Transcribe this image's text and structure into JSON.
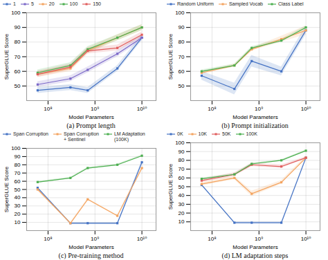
{
  "chart_data": [
    {
      "type": "line",
      "title": "(a) Prompt length",
      "xlabel": "Model Parameters",
      "ylabel": "SuperGLUE Score",
      "x": [
        60000000,
        300000000,
        700000000,
        3000000000,
        10000000000
      ],
      "series": [
        {
          "name": "1",
          "color": "#4472c4",
          "values": [
            47,
            49,
            47,
            62,
            83
          ],
          "band": [
            2,
            2,
            2,
            2,
            2
          ]
        },
        {
          "name": "5",
          "color": "#7b68c8",
          "values": [
            51,
            55,
            61,
            72,
            83
          ],
          "band": [
            2,
            2,
            2,
            2,
            2
          ]
        },
        {
          "name": "20",
          "color": "#f4a460",
          "values": [
            58,
            62,
            74,
            83,
            90
          ],
          "band": [
            2,
            2,
            2,
            2,
            2
          ]
        },
        {
          "name": "100",
          "color": "#4caf50",
          "values": [
            59,
            64,
            75,
            83,
            90
          ],
          "band": [
            2,
            2,
            2,
            2,
            2
          ]
        },
        {
          "name": "150",
          "color": "#e05c5c",
          "values": [
            58,
            63,
            74,
            76,
            85
          ],
          "band": [
            2,
            2,
            2,
            2,
            2
          ]
        }
      ],
      "xlim": [
        35000000,
        20000000000
      ],
      "xticks": [
        {
          "value": 100000000,
          "label": "10⁸"
        },
        {
          "value": 1000000000,
          "label": "10⁹"
        },
        {
          "value": 10000000000,
          "label": "10¹⁰"
        }
      ],
      "ylim": [
        40,
        100
      ],
      "yticks": [
        50,
        60,
        70,
        80,
        90,
        100
      ],
      "log": "x",
      "grid": true,
      "legend": "upper left",
      "marker": "square"
    },
    {
      "type": "line",
      "title": "(b) Prompt initialization",
      "xlabel": "Model Parameters",
      "ylabel": "SuperGLUE Score",
      "x": [
        60000000,
        300000000,
        700000000,
        3000000000,
        10000000000
      ],
      "series": [
        {
          "name": "Random Uniform",
          "color": "#4472c4",
          "values": [
            57,
            48,
            67,
            60,
            88
          ],
          "band": [
            3,
            4,
            4,
            3,
            3
          ]
        },
        {
          "name": "Sampled Vocab",
          "color": "#f4a460",
          "values": [
            59,
            64,
            75,
            82,
            88
          ],
          "band": [
            1,
            1,
            1,
            2,
            3
          ]
        },
        {
          "name": "Class Label",
          "color": "#4caf50",
          "values": [
            60,
            64,
            76,
            81,
            90
          ],
          "band": [
            1,
            1,
            1,
            1,
            1
          ]
        }
      ],
      "xlim": [
        35000000,
        20000000000
      ],
      "xticks": [
        {
          "value": 100000000,
          "label": "10⁸"
        },
        {
          "value": 1000000000,
          "label": "10⁹"
        },
        {
          "value": 10000000000,
          "label": "10¹⁰"
        }
      ],
      "ylim": [
        40,
        100
      ],
      "yticks": [
        50,
        60,
        70,
        80,
        90,
        100
      ],
      "log": "x",
      "grid": true,
      "legend": "upper left",
      "marker": "square"
    },
    {
      "type": "line",
      "title": "(c) Pre-training method",
      "xlabel": "Model Parameters",
      "ylabel": "SuperGLUE Score",
      "x": [
        60000000,
        300000000,
        700000000,
        3000000000,
        10000000000
      ],
      "series": [
        {
          "name": "Span Corruption",
          "color": "#4472c4",
          "values": [
            52,
            9,
            9,
            9,
            83
          ],
          "band": [
            1,
            1,
            1,
            1,
            2
          ]
        },
        {
          "name": "Span Corruption\n+ Sentinel",
          "color": "#f4a460",
          "values": [
            50,
            9,
            38,
            18,
            76
          ],
          "band": [
            1,
            1,
            1,
            1,
            2
          ]
        },
        {
          "name": "LM Adaptation\n(100K)",
          "color": "#4caf50",
          "values": [
            59,
            64,
            76,
            80,
            91
          ],
          "band": [
            1,
            1,
            1,
            1,
            1
          ]
        }
      ],
      "xlim": [
        35000000,
        20000000000
      ],
      "xticks": [
        {
          "value": 100000000,
          "label": "10⁸"
        },
        {
          "value": 1000000000,
          "label": "10⁹"
        },
        {
          "value": 10000000000,
          "label": "10¹⁰"
        }
      ],
      "ylim": [
        0,
        100
      ],
      "yticks": [
        10,
        20,
        30,
        40,
        50,
        60,
        70,
        80,
        90,
        100
      ],
      "log": "x",
      "grid": true,
      "legend": "upper left",
      "marker": "square"
    },
    {
      "type": "line",
      "title": "(d) LM adaptation steps",
      "xlabel": "Model Parameters",
      "ylabel": "SuperGLUE Score",
      "x": [
        60000000,
        300000000,
        700000000,
        3000000000,
        10000000000
      ],
      "series": [
        {
          "name": "0K",
          "color": "#4472c4",
          "values": [
            52,
            9,
            9,
            9,
            83
          ],
          "band": [
            1,
            1,
            1,
            1,
            1
          ]
        },
        {
          "name": "10K",
          "color": "#f4a460",
          "values": [
            53,
            60,
            42,
            55,
            83
          ],
          "band": [
            2,
            2,
            3,
            2,
            2
          ]
        },
        {
          "name": "50K",
          "color": "#e05c5c",
          "values": [
            57,
            64,
            75,
            73,
            83
          ],
          "band": [
            2,
            2,
            2,
            2,
            1
          ]
        },
        {
          "name": "100K",
          "color": "#4caf50",
          "values": [
            59,
            64,
            76,
            80,
            91
          ],
          "band": [
            1,
            1,
            1,
            1,
            1
          ]
        }
      ],
      "xlim": [
        35000000,
        20000000000
      ],
      "xticks": [
        {
          "value": 100000000,
          "label": "10⁸"
        },
        {
          "value": 1000000000,
          "label": "10⁹"
        },
        {
          "value": 10000000000,
          "label": "10¹⁰"
        }
      ],
      "ylim": [
        0,
        100
      ],
      "yticks": [
        10,
        20,
        30,
        40,
        50,
        60,
        70,
        80,
        90,
        100
      ],
      "log": "x",
      "grid": true,
      "legend": "upper left",
      "marker": "square"
    }
  ]
}
